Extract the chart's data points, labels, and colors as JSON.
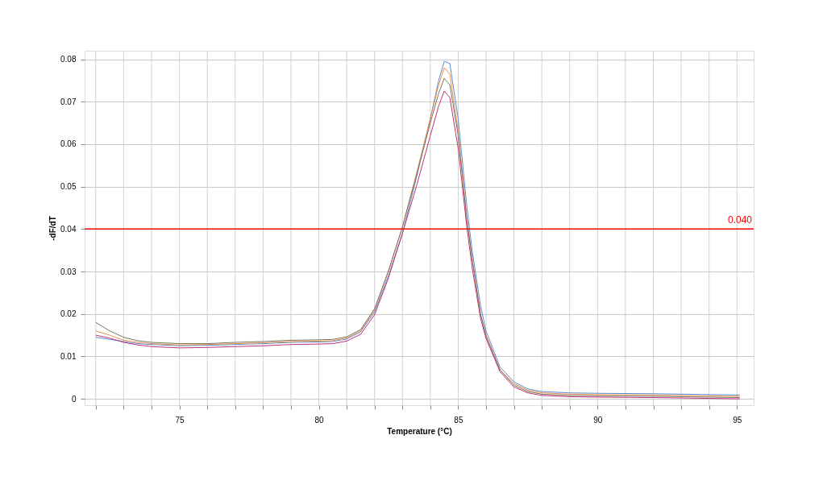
{
  "chart_data": {
    "type": "line",
    "xlabel": "Temperature (°C)",
    "ylabel": "-dF/dT",
    "x": [
      72,
      72.5,
      73,
      73.5,
      74,
      75,
      76,
      77,
      78,
      79,
      80,
      80.5,
      81,
      81.5,
      82,
      82.5,
      83,
      83.5,
      84,
      84.3,
      84.5,
      84.7,
      85,
      85.3,
      85.5,
      85.8,
      86,
      86.5,
      87,
      87.5,
      88,
      89,
      90,
      92,
      94,
      95.1
    ],
    "series": [
      {
        "color": "#5b8bd0",
        "values": [
          0.0145,
          0.014,
          0.0135,
          0.013,
          0.0128,
          0.0125,
          0.0126,
          0.0128,
          0.013,
          0.0133,
          0.0134,
          0.0135,
          0.0141,
          0.0158,
          0.0205,
          0.029,
          0.039,
          0.052,
          0.066,
          0.075,
          0.0795,
          0.079,
          0.066,
          0.046,
          0.035,
          0.022,
          0.016,
          0.0075,
          0.004,
          0.0023,
          0.0017,
          0.0014,
          0.0013,
          0.0012,
          0.001,
          0.0009
        ]
      },
      {
        "color": "#e8904a",
        "values": [
          0.016,
          0.015,
          0.0138,
          0.0133,
          0.013,
          0.0127,
          0.0128,
          0.013,
          0.0132,
          0.0135,
          0.0136,
          0.0137,
          0.0143,
          0.016,
          0.021,
          0.03,
          0.0405,
          0.053,
          0.066,
          0.074,
          0.078,
          0.0765,
          0.063,
          0.043,
          0.033,
          0.02,
          0.015,
          0.0068,
          0.0036,
          0.002,
          0.0014,
          0.0011,
          0.001,
          0.0009,
          0.0007,
          0.0006
        ]
      },
      {
        "color": "#7a7560",
        "values": [
          0.018,
          0.016,
          0.0145,
          0.0137,
          0.0133,
          0.013,
          0.013,
          0.0133,
          0.0135,
          0.0138,
          0.0139,
          0.014,
          0.0146,
          0.0163,
          0.0212,
          0.0302,
          0.0405,
          0.0525,
          0.065,
          0.072,
          0.0755,
          0.074,
          0.062,
          0.043,
          0.033,
          0.02,
          0.0148,
          0.0068,
          0.0032,
          0.0017,
          0.0011,
          0.0008,
          0.0007,
          0.0006,
          0.0004,
          0.0003
        ]
      },
      {
        "color": "#c0307a",
        "values": [
          0.015,
          0.0143,
          0.0133,
          0.0127,
          0.0123,
          0.012,
          0.0121,
          0.0123,
          0.0125,
          0.0128,
          0.0129,
          0.013,
          0.0136,
          0.0152,
          0.0198,
          0.0285,
          0.039,
          0.05,
          0.062,
          0.069,
          0.0725,
          0.071,
          0.059,
          0.041,
          0.031,
          0.019,
          0.0142,
          0.0064,
          0.0028,
          0.0014,
          0.0008,
          0.0005,
          0.0004,
          0.0003,
          0.0001,
          0.0
        ]
      }
    ],
    "xlim": [
      71.6,
      95.6
    ],
    "ylim": [
      -0.0015,
      0.082
    ],
    "xticks": [
      {
        "value": 72,
        "label": null
      },
      {
        "value": 73,
        "label": null
      },
      {
        "value": 74,
        "label": null
      },
      75,
      {
        "value": 76,
        "label": null
      },
      {
        "value": 77,
        "label": null
      },
      {
        "value": 78,
        "label": null
      },
      {
        "value": 79,
        "label": null
      },
      80,
      {
        "value": 81,
        "label": null
      },
      {
        "value": 82,
        "label": null
      },
      {
        "value": 83,
        "label": null
      },
      {
        "value": 84,
        "label": null
      },
      85,
      {
        "value": 86,
        "label": null
      },
      {
        "value": 87,
        "label": null
      },
      {
        "value": 88,
        "label": null
      },
      {
        "value": 89,
        "label": null
      },
      90,
      {
        "value": 91,
        "label": null
      },
      {
        "value": 92,
        "label": null
      },
      {
        "value": 93,
        "label": null
      },
      {
        "value": 94,
        "label": null
      },
      95
    ],
    "yticks": [
      0,
      0.01,
      0.02,
      0.03,
      0.04,
      0.05,
      0.06,
      0.07,
      0.08
    ],
    "ref_lines": [
      {
        "axis": "y",
        "value": 0.04,
        "label": "0.040",
        "color": "#ff0000"
      }
    ],
    "grid": true,
    "legend": false,
    "marker": "none",
    "line_style": "solid"
  }
}
